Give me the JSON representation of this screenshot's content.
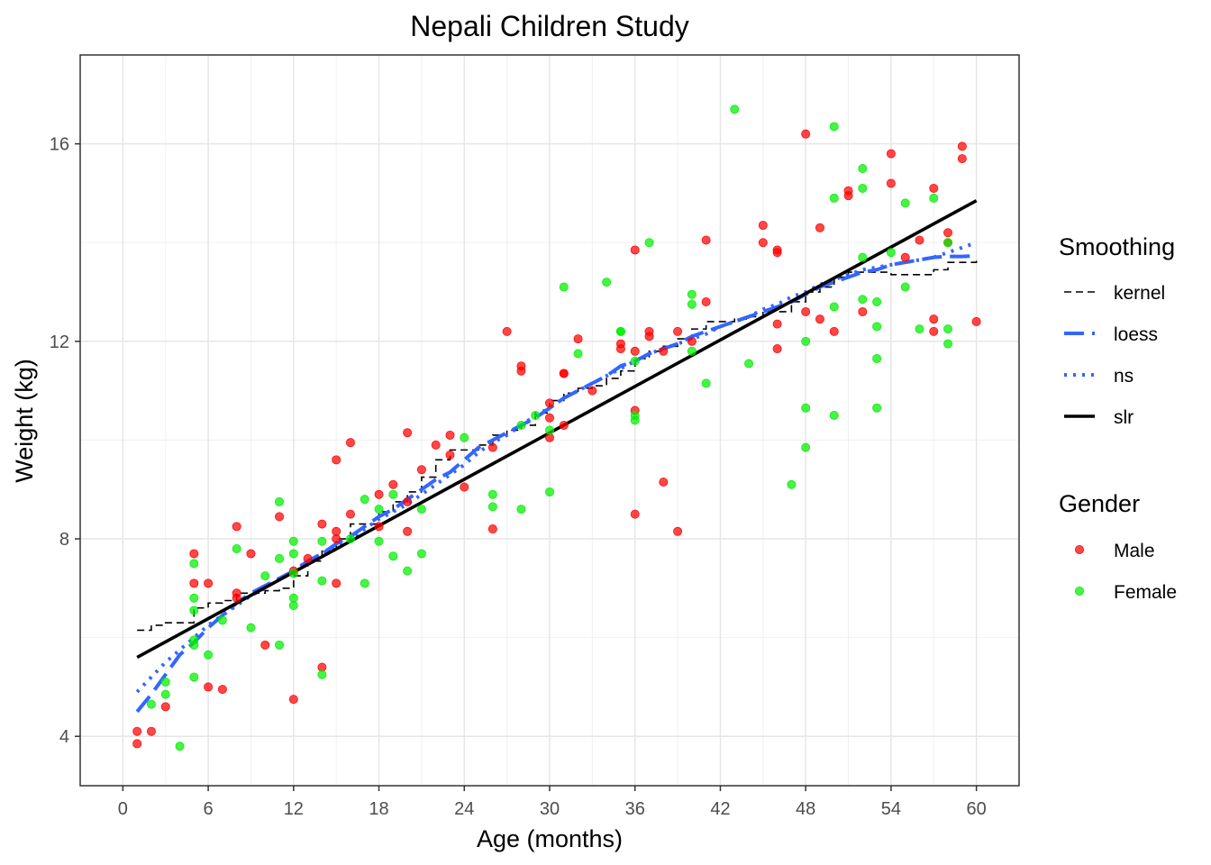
{
  "chart_data": {
    "type": "scatter",
    "title": "Nepali Children Study",
    "xlabel": "Age (months)",
    "ylabel": "Weight (kg)",
    "xlim": [
      -3,
      63
    ],
    "ylim": [
      3,
      17.8
    ],
    "x_ticks": [
      0,
      6,
      12,
      18,
      24,
      30,
      36,
      42,
      48,
      54,
      60
    ],
    "y_ticks": [
      4,
      8,
      12,
      16
    ],
    "grid": true,
    "legend_position": "right",
    "legends": {
      "smoothing": {
        "title": "Smoothing",
        "entries": [
          {
            "label": "kernel",
            "color": "#000000",
            "style": "dashed"
          },
          {
            "label": "loess",
            "color": "#3366ff",
            "style": "longdash"
          },
          {
            "label": "ns",
            "color": "#3366ff",
            "style": "dotted"
          },
          {
            "label": "slr",
            "color": "#000000",
            "style": "solid"
          }
        ]
      },
      "gender": {
        "title": "Gender",
        "entries": [
          {
            "label": "Male",
            "color": "#ff0000"
          },
          {
            "label": "Female",
            "color": "#00ee00"
          }
        ]
      }
    },
    "points": {
      "Male": [
        [
          1,
          4.1
        ],
        [
          1,
          3.85
        ],
        [
          2,
          4.1
        ],
        [
          3,
          4.6
        ],
        [
          5,
          7.7
        ],
        [
          5,
          7.1
        ],
        [
          6,
          7.1
        ],
        [
          6,
          5.0
        ],
        [
          7,
          4.95
        ],
        [
          8,
          8.25
        ],
        [
          8,
          6.9
        ],
        [
          8,
          6.8
        ],
        [
          9,
          7.7
        ],
        [
          10,
          5.85
        ],
        [
          11,
          8.45
        ],
        [
          12,
          7.35
        ],
        [
          12,
          4.75
        ],
        [
          13,
          7.6
        ],
        [
          14,
          8.3
        ],
        [
          14,
          5.4
        ],
        [
          15,
          9.6
        ],
        [
          15,
          8.15
        ],
        [
          15,
          8.0
        ],
        [
          15,
          7.1
        ],
        [
          16,
          9.95
        ],
        [
          16,
          8.5
        ],
        [
          18,
          8.9
        ],
        [
          18,
          8.25
        ],
        [
          19,
          9.1
        ],
        [
          20,
          10.15
        ],
        [
          20,
          8.75
        ],
        [
          20,
          8.15
        ],
        [
          21,
          9.4
        ],
        [
          22,
          9.9
        ],
        [
          23,
          10.1
        ],
        [
          23,
          9.7
        ],
        [
          24,
          9.05
        ],
        [
          26,
          9.85
        ],
        [
          26,
          8.2
        ],
        [
          27,
          12.2
        ],
        [
          28,
          11.5
        ],
        [
          28,
          11.4
        ],
        [
          30,
          10.75
        ],
        [
          30,
          10.45
        ],
        [
          30,
          10.05
        ],
        [
          31,
          11.35
        ],
        [
          31,
          11.35
        ],
        [
          31,
          10.3
        ],
        [
          32,
          12.05
        ],
        [
          33,
          11.0
        ],
        [
          35,
          11.95
        ],
        [
          35,
          11.85
        ],
        [
          36,
          13.85
        ],
        [
          36,
          11.8
        ],
        [
          36,
          10.6
        ],
        [
          36,
          8.5
        ],
        [
          37,
          12.2
        ],
        [
          37,
          12.1
        ],
        [
          38,
          11.8
        ],
        [
          38,
          9.15
        ],
        [
          39,
          12.2
        ],
        [
          39,
          8.15
        ],
        [
          40,
          12.0
        ],
        [
          41,
          14.05
        ],
        [
          41,
          12.8
        ],
        [
          45,
          14.35
        ],
        [
          45,
          14.0
        ],
        [
          46,
          13.85
        ],
        [
          46,
          13.8
        ],
        [
          46,
          12.35
        ],
        [
          46,
          11.85
        ],
        [
          48,
          16.2
        ],
        [
          48,
          12.6
        ],
        [
          49,
          14.3
        ],
        [
          49,
          12.45
        ],
        [
          50,
          12.2
        ],
        [
          51,
          15.05
        ],
        [
          51,
          14.95
        ],
        [
          52,
          12.6
        ],
        [
          54,
          15.8
        ],
        [
          54,
          15.2
        ],
        [
          55,
          13.7
        ],
        [
          56,
          14.05
        ],
        [
          57,
          15.1
        ],
        [
          57,
          12.45
        ],
        [
          57,
          12.2
        ],
        [
          58,
          14.2
        ],
        [
          58,
          14.0
        ],
        [
          59,
          15.95
        ],
        [
          59,
          15.7
        ],
        [
          60,
          12.4
        ]
      ],
      "Female": [
        [
          2,
          4.65
        ],
        [
          3,
          5.1
        ],
        [
          3,
          4.85
        ],
        [
          4,
          3.8
        ],
        [
          5,
          7.5
        ],
        [
          5,
          6.8
        ],
        [
          5,
          6.55
        ],
        [
          5,
          5.95
        ],
        [
          5,
          5.85
        ],
        [
          5,
          5.2
        ],
        [
          6,
          5.65
        ],
        [
          7,
          6.35
        ],
        [
          8,
          7.8
        ],
        [
          9,
          6.2
        ],
        [
          10,
          7.25
        ],
        [
          11,
          8.75
        ],
        [
          11,
          7.6
        ],
        [
          11,
          5.85
        ],
        [
          12,
          7.95
        ],
        [
          12,
          7.7
        ],
        [
          12,
          7.3
        ],
        [
          12,
          6.8
        ],
        [
          12,
          6.65
        ],
        [
          14,
          7.95
        ],
        [
          14,
          7.15
        ],
        [
          14,
          5.25
        ],
        [
          16,
          8.0
        ],
        [
          17,
          8.8
        ],
        [
          17,
          7.1
        ],
        [
          18,
          8.6
        ],
        [
          18,
          7.95
        ],
        [
          19,
          8.9
        ],
        [
          19,
          7.65
        ],
        [
          20,
          7.35
        ],
        [
          21,
          8.6
        ],
        [
          21,
          7.7
        ],
        [
          24,
          10.05
        ],
        [
          26,
          8.9
        ],
        [
          26,
          8.65
        ],
        [
          28,
          10.3
        ],
        [
          28,
          8.6
        ],
        [
          29,
          10.5
        ],
        [
          30,
          10.2
        ],
        [
          30,
          8.95
        ],
        [
          31,
          13.1
        ],
        [
          32,
          11.75
        ],
        [
          34,
          13.2
        ],
        [
          35,
          12.2
        ],
        [
          35,
          12.2
        ],
        [
          36,
          11.6
        ],
        [
          36,
          10.5
        ],
        [
          36,
          10.4
        ],
        [
          37,
          14.0
        ],
        [
          40,
          12.95
        ],
        [
          40,
          12.75
        ],
        [
          40,
          11.8
        ],
        [
          41,
          11.15
        ],
        [
          43,
          16.7
        ],
        [
          44,
          11.55
        ],
        [
          47,
          9.1
        ],
        [
          48,
          12.0
        ],
        [
          48,
          10.65
        ],
        [
          48,
          9.85
        ],
        [
          50,
          16.35
        ],
        [
          50,
          14.9
        ],
        [
          50,
          12.7
        ],
        [
          50,
          10.5
        ],
        [
          52,
          15.5
        ],
        [
          52,
          15.1
        ],
        [
          52,
          13.7
        ],
        [
          52,
          12.85
        ],
        [
          53,
          12.8
        ],
        [
          53,
          12.3
        ],
        [
          53,
          11.65
        ],
        [
          53,
          10.65
        ],
        [
          54,
          13.8
        ],
        [
          55,
          14.8
        ],
        [
          55,
          13.1
        ],
        [
          56,
          12.25
        ],
        [
          57,
          14.9
        ],
        [
          58,
          14.0
        ],
        [
          58,
          12.25
        ],
        [
          58,
          11.95
        ]
      ]
    },
    "lines": {
      "slr": {
        "x": [
          1,
          60
        ],
        "y": [
          5.6,
          14.85
        ]
      },
      "loess": {
        "x": [
          1,
          2,
          3,
          4,
          5,
          6,
          7,
          8,
          9,
          10,
          11,
          12,
          13,
          14,
          15,
          16,
          17,
          18,
          19,
          20,
          21,
          22,
          23,
          24,
          25,
          26,
          27,
          28,
          29,
          30,
          31,
          32,
          33,
          34,
          35,
          36,
          37,
          38,
          39,
          40,
          41,
          42,
          43,
          44,
          45,
          46,
          47,
          48,
          49,
          50,
          51,
          52,
          53,
          54,
          55,
          56,
          57,
          58,
          59,
          60
        ],
        "y": [
          4.5,
          4.85,
          5.25,
          5.65,
          5.9,
          6.2,
          6.45,
          6.7,
          6.9,
          7.05,
          7.2,
          7.35,
          7.55,
          7.7,
          7.9,
          8.05,
          8.25,
          8.45,
          8.6,
          8.8,
          9.0,
          9.2,
          9.35,
          9.6,
          9.85,
          10.0,
          10.15,
          10.3,
          10.45,
          10.65,
          10.85,
          11.0,
          11.15,
          11.3,
          11.5,
          11.6,
          11.75,
          11.85,
          11.95,
          12.1,
          12.2,
          12.3,
          12.4,
          12.5,
          12.6,
          12.7,
          12.8,
          12.95,
          13.1,
          13.2,
          13.3,
          13.4,
          13.45,
          13.55,
          13.6,
          13.65,
          13.7,
          13.72,
          13.72,
          13.73
        ]
      },
      "ns": {
        "x": [
          1,
          2,
          3,
          4,
          5,
          6,
          7,
          8,
          9,
          10,
          11,
          12,
          13,
          14,
          15,
          16,
          17,
          18,
          19,
          20,
          21,
          22,
          23,
          24,
          25,
          26,
          27,
          28,
          29,
          30,
          31,
          32,
          33,
          34,
          35,
          36,
          37,
          38,
          39,
          40,
          41,
          42,
          43,
          44,
          45,
          46,
          47,
          48,
          49,
          50,
          51,
          52,
          53,
          54,
          55,
          56,
          57,
          58,
          59,
          60
        ],
        "y": [
          4.9,
          5.2,
          5.5,
          5.75,
          6.0,
          6.25,
          6.45,
          6.65,
          6.85,
          7.0,
          7.2,
          7.35,
          7.55,
          7.7,
          7.85,
          8.0,
          8.2,
          8.4,
          8.55,
          8.7,
          8.9,
          9.1,
          9.3,
          9.5,
          9.75,
          9.95,
          10.1,
          10.3,
          10.5,
          10.65,
          10.85,
          11.0,
          11.15,
          11.3,
          11.45,
          11.6,
          11.75,
          11.85,
          11.95,
          12.05,
          12.15,
          12.3,
          12.4,
          12.5,
          12.65,
          12.75,
          12.9,
          13.0,
          13.15,
          13.25,
          13.35,
          13.45,
          13.5,
          13.55,
          13.6,
          13.65,
          13.7,
          13.8,
          13.9,
          14.0
        ]
      },
      "kernel": {
        "x": [
          1,
          2,
          3,
          4,
          5,
          6,
          7,
          8,
          9,
          10,
          11,
          12,
          13,
          14,
          15,
          16,
          17,
          18,
          19,
          20,
          21,
          22,
          23,
          24,
          25,
          26,
          27,
          28,
          29,
          30,
          31,
          32,
          33,
          34,
          35,
          36,
          37,
          38,
          39,
          40,
          41,
          42,
          43,
          44,
          45,
          46,
          47,
          48,
          49,
          50,
          51,
          52,
          53,
          54,
          55,
          56,
          57,
          58,
          59,
          60
        ],
        "y": [
          6.15,
          6.25,
          6.3,
          6.3,
          6.6,
          6.7,
          6.75,
          6.9,
          6.9,
          6.95,
          7.0,
          7.25,
          7.55,
          7.75,
          8.0,
          8.3,
          8.3,
          8.55,
          8.75,
          8.95,
          9.25,
          9.6,
          9.8,
          9.8,
          9.9,
          10.1,
          10.2,
          10.3,
          10.55,
          10.8,
          10.95,
          11.05,
          11.1,
          11.25,
          11.4,
          11.65,
          11.8,
          11.9,
          12.05,
          12.25,
          12.4,
          12.4,
          12.45,
          12.5,
          12.6,
          12.6,
          12.8,
          13.0,
          13.1,
          13.3,
          13.4,
          13.4,
          13.4,
          13.35,
          13.35,
          13.35,
          13.45,
          13.6,
          13.6,
          13.65
        ]
      }
    }
  }
}
